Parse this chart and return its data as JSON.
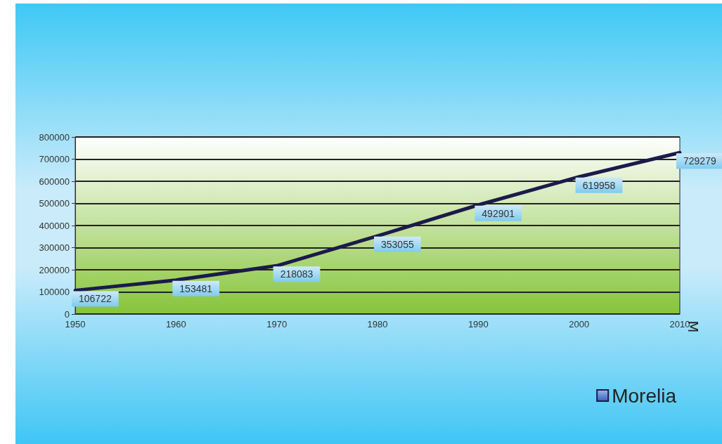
{
  "chart_data": {
    "type": "line",
    "categories": [
      "1950",
      "1960",
      "1970",
      "1980",
      "1990",
      "2000",
      "2010"
    ],
    "series": [
      {
        "name": "Morelia",
        "color": "#1c1a4a",
        "values": [
          106722,
          153481,
          218083,
          353055,
          492901,
          619958,
          729279
        ]
      }
    ],
    "ylim": [
      0,
      800000
    ],
    "yticks": [
      0,
      100000,
      200000,
      300000,
      400000,
      500000,
      600000,
      700000,
      800000
    ],
    "grid": "y",
    "legend": "bottom right",
    "marker": "none",
    "line_style": "solid",
    "data_labels": true,
    "annotations": [
      "M"
    ]
  }
}
